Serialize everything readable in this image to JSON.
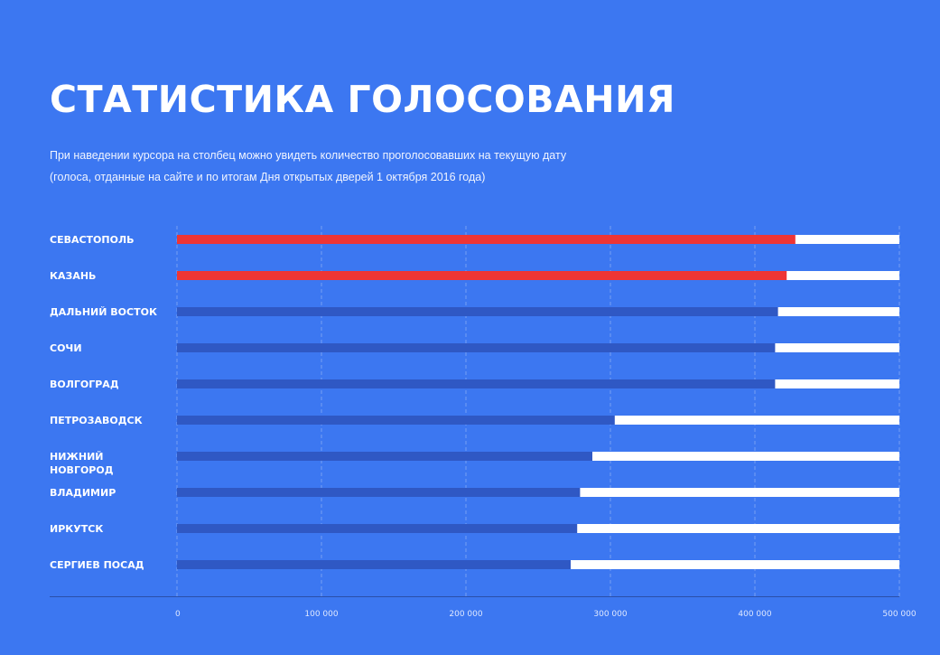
{
  "title": "СТАТИСТИКА ГОЛОСОВАНИЯ",
  "subtitle_line1": "При наведении курсора на столбец можно увидеть количество проголосовавших на текущую дату",
  "subtitle_line2": "(голоса, отданные на сайте и по итогам Дня открытых дверей 1 октября 2016 года)",
  "colors": {
    "background": "#3c77f1",
    "highlight": "#ee3535",
    "bar": "#2f58c4",
    "remainder": "#ffffff"
  },
  "chart_data": {
    "type": "bar",
    "orientation": "horizontal",
    "categories": [
      "СЕВАСТОПОЛЬ",
      "КАЗАНЬ",
      "ДАЛЬНИЙ ВОСТОК",
      "СОЧИ",
      "ВОЛГОГРАД",
      "ПЕТРОЗАВОДСК",
      "НИЖНИЙ НОВГОРОД",
      "ВЛАДИМИР",
      "ИРКУТСК",
      "СЕРГИЕВ ПОСАД"
    ],
    "values": [
      428000,
      422000,
      416000,
      414000,
      414000,
      303000,
      287500,
      279000,
      277000,
      272500
    ],
    "highlighted": [
      true,
      true,
      false,
      false,
      false,
      false,
      false,
      false,
      false,
      false
    ],
    "xlim": [
      0,
      500000
    ],
    "xticks": [
      0,
      100000,
      200000,
      300000,
      400000,
      500000
    ],
    "xtick_labels": [
      "0",
      "100 000",
      "200 000",
      "300 000",
      "400 000",
      "500 000"
    ],
    "grid": "vertical dashed",
    "xlabel": "",
    "ylabel": ""
  }
}
